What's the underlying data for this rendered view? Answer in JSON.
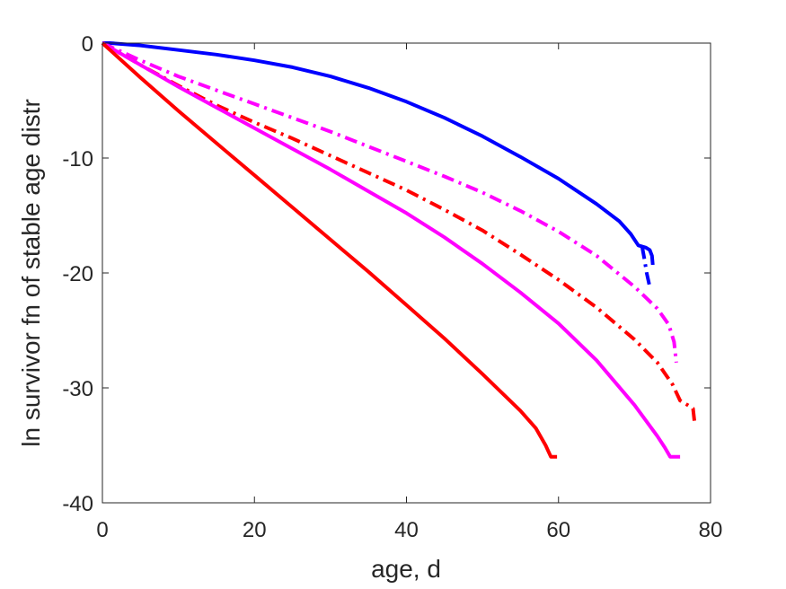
{
  "chart_data": {
    "type": "line",
    "xlabel": "age, d",
    "ylabel": "ln survivor fn of stable age distr",
    "xlim": [
      0,
      80
    ],
    "ylim": [
      -40,
      0
    ],
    "xticks": [
      0,
      20,
      40,
      60,
      80
    ],
    "yticks": [
      0,
      -10,
      -20,
      -30,
      -40
    ],
    "xtick_labels": [
      "0",
      "20",
      "40",
      "60",
      "80"
    ],
    "ytick_labels": [
      "0",
      "-10",
      "-20",
      "-30",
      "-40"
    ],
    "grid": false,
    "series": [
      {
        "color": "#0000ff",
        "style": "solid",
        "points": [
          [
            0,
            0
          ],
          [
            1,
            0
          ],
          [
            5,
            -0.2
          ],
          [
            10,
            -0.6
          ],
          [
            15,
            -1.0
          ],
          [
            20,
            -1.5
          ],
          [
            25,
            -2.1
          ],
          [
            30,
            -2.9
          ],
          [
            35,
            -3.9
          ],
          [
            40,
            -5.1
          ],
          [
            45,
            -6.5
          ],
          [
            50,
            -8.1
          ],
          [
            55,
            -9.9
          ],
          [
            60,
            -11.8
          ],
          [
            65,
            -14.0
          ],
          [
            68,
            -15.5
          ],
          [
            69.5,
            -16.6
          ],
          [
            70.5,
            -17.6
          ],
          [
            71.5,
            -17.8
          ],
          [
            72,
            -18.0
          ],
          [
            72.3,
            -18.5
          ],
          [
            72.4,
            -19.3
          ]
        ]
      },
      {
        "color": "#0000ff",
        "style": "dashdot",
        "points": [
          [
            71,
            -17.7
          ],
          [
            71.3,
            -18.8
          ],
          [
            71.6,
            -20.0
          ],
          [
            72,
            -21.2
          ]
        ]
      },
      {
        "color": "#ff00ff",
        "style": "dashdot",
        "points": [
          [
            0,
            0
          ],
          [
            5,
            -1.5
          ],
          [
            10,
            -2.9
          ],
          [
            15,
            -4.1
          ],
          [
            20,
            -5.3
          ],
          [
            25,
            -6.5
          ],
          [
            30,
            -7.7
          ],
          [
            35,
            -9.0
          ],
          [
            40,
            -10.3
          ],
          [
            45,
            -11.6
          ],
          [
            50,
            -13.0
          ],
          [
            55,
            -14.6
          ],
          [
            60,
            -16.4
          ],
          [
            65,
            -18.5
          ],
          [
            70,
            -21.2
          ],
          [
            73,
            -23.1
          ],
          [
            74.5,
            -24.5
          ],
          [
            75.2,
            -26.0
          ],
          [
            75.5,
            -27.8
          ]
        ]
      },
      {
        "color": "#ff0000",
        "style": "dashdot",
        "points": [
          [
            0,
            0
          ],
          [
            5,
            -1.9
          ],
          [
            10,
            -3.7
          ],
          [
            15,
            -5.4
          ],
          [
            20,
            -6.9
          ],
          [
            25,
            -8.3
          ],
          [
            30,
            -9.8
          ],
          [
            35,
            -11.3
          ],
          [
            40,
            -12.8
          ],
          [
            45,
            -14.5
          ],
          [
            50,
            -16.3
          ],
          [
            55,
            -18.4
          ],
          [
            60,
            -20.6
          ],
          [
            65,
            -23.0
          ],
          [
            70,
            -25.8
          ],
          [
            73,
            -27.8
          ],
          [
            75,
            -29.7
          ],
          [
            76,
            -31.1
          ],
          [
            77,
            -31.5
          ],
          [
            77.7,
            -31.8
          ],
          [
            77.9,
            -33.0
          ]
        ]
      },
      {
        "color": "#ff00ff",
        "style": "solid",
        "points": [
          [
            0,
            0
          ],
          [
            5,
            -1.9
          ],
          [
            10,
            -3.8
          ],
          [
            15,
            -5.6
          ],
          [
            20,
            -7.4
          ],
          [
            25,
            -9.2
          ],
          [
            30,
            -11.0
          ],
          [
            35,
            -12.9
          ],
          [
            40,
            -14.8
          ],
          [
            45,
            -16.9
          ],
          [
            50,
            -19.2
          ],
          [
            55,
            -21.7
          ],
          [
            60,
            -24.4
          ],
          [
            65,
            -27.6
          ],
          [
            70,
            -31.5
          ],
          [
            73,
            -34.2
          ],
          [
            74,
            -35.2
          ],
          [
            74.7,
            -36.0
          ],
          [
            76,
            -36.0
          ]
        ]
      },
      {
        "color": "#ff0000",
        "style": "solid",
        "points": [
          [
            0,
            0
          ],
          [
            5,
            -3.0
          ],
          [
            10,
            -5.9
          ],
          [
            15,
            -8.7
          ],
          [
            20,
            -11.5
          ],
          [
            25,
            -14.3
          ],
          [
            30,
            -17.1
          ],
          [
            35,
            -19.9
          ],
          [
            40,
            -22.8
          ],
          [
            45,
            -25.7
          ],
          [
            50,
            -28.8
          ],
          [
            55,
            -32.0
          ],
          [
            57,
            -33.5
          ],
          [
            58.3,
            -35.0
          ],
          [
            59,
            -36.0
          ],
          [
            59.8,
            -36.0
          ]
        ]
      }
    ]
  }
}
